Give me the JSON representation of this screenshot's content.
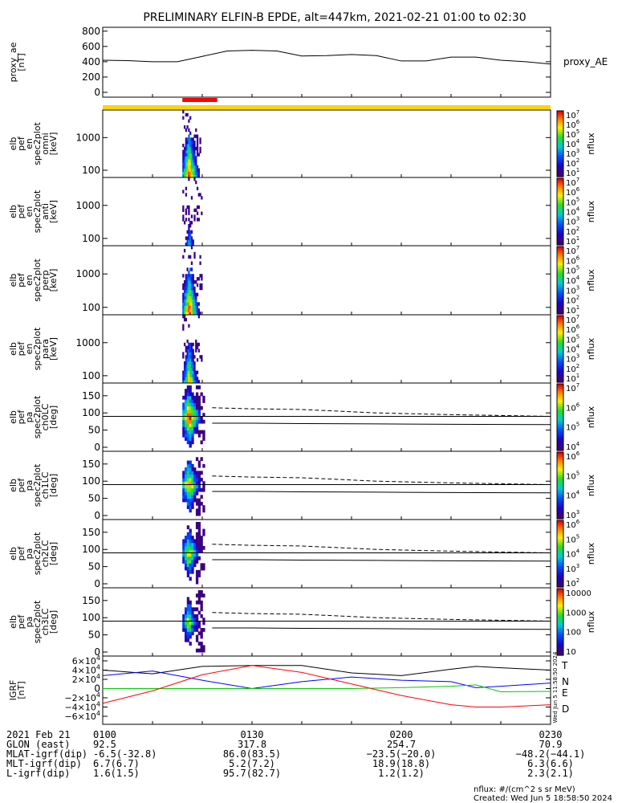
{
  "title": "PRELIMINARY ELFIN-B EPDE, alt=447km, 2021-02-21 01:00 to 02:30",
  "colors": {
    "yellow_bar": "#ffd400",
    "red_bar": "#ff0000",
    "igrf_T": "#000000",
    "igrf_N": "#0000ff",
    "igrf_E": "#00cc00",
    "igrf_D": "#ff0000"
  },
  "panels": [
    {
      "ylabel": [
        "proxy_ae",
        "[nT]"
      ],
      "right_label": "proxy_AE",
      "yticks": [
        "800",
        "600",
        "400",
        "200",
        "0"
      ]
    },
    {
      "ylabel": [
        "elb",
        "pef",
        "en",
        "spec2plot",
        "omni",
        "[keV]"
      ],
      "yticks": [
        "1000",
        "100"
      ],
      "cbar_ticks": [
        "10",
        "10",
        "10",
        "10",
        "10",
        "10",
        "10"
      ],
      "cbar_exps": [
        "7",
        "6",
        "5",
        "4",
        "3",
        "2",
        "1"
      ],
      "cbar_label": "nflux"
    },
    {
      "ylabel": [
        "elb",
        "pef",
        "en",
        "spec2plot",
        "anti",
        "[keV]"
      ],
      "yticks": [
        "1000",
        "100"
      ],
      "cbar_ticks": [
        "10",
        "10",
        "10",
        "10",
        "10",
        "10",
        "10"
      ],
      "cbar_exps": [
        "7",
        "6",
        "5",
        "4",
        "3",
        "2",
        "1"
      ],
      "cbar_label": "nflux"
    },
    {
      "ylabel": [
        "elb",
        "pef",
        "en",
        "spec2plot",
        "perp",
        "[keV]"
      ],
      "yticks": [
        "1000",
        "100"
      ],
      "cbar_ticks": [
        "10",
        "10",
        "10",
        "10",
        "10",
        "10",
        "10"
      ],
      "cbar_exps": [
        "7",
        "6",
        "5",
        "4",
        "3",
        "2",
        "1"
      ],
      "cbar_label": "nflux"
    },
    {
      "ylabel": [
        "elb",
        "pef",
        "en",
        "spec2plot",
        "para",
        "[keV]"
      ],
      "yticks": [
        "1000",
        "100"
      ],
      "cbar_ticks": [
        "10",
        "10",
        "10",
        "10",
        "10",
        "10",
        "10"
      ],
      "cbar_exps": [
        "7",
        "6",
        "5",
        "4",
        "3",
        "2",
        "1"
      ],
      "cbar_label": "nflux"
    },
    {
      "ylabel": [
        "elb",
        "pef",
        "pa",
        "spec2plot",
        "ch0LC",
        "[deg]"
      ],
      "yticks": [
        "150",
        "100",
        "50",
        "0"
      ],
      "cbar_ticks": [
        "10",
        "10",
        "10",
        "10"
      ],
      "cbar_exps": [
        "7",
        "6",
        "5",
        "4"
      ],
      "cbar_label": "nflux"
    },
    {
      "ylabel": [
        "elb",
        "pef",
        "pa",
        "spec2plot",
        "ch1LC",
        "[deg]"
      ],
      "yticks": [
        "150",
        "100",
        "50",
        "0"
      ],
      "cbar_ticks": [
        "10",
        "10",
        "10",
        "10"
      ],
      "cbar_exps": [
        "6",
        "5",
        "4",
        "3"
      ],
      "cbar_label": "nflux"
    },
    {
      "ylabel": [
        "elb",
        "pef",
        "pa",
        "spec2plot",
        "ch2LC",
        "[deg]"
      ],
      "yticks": [
        "150",
        "100",
        "50",
        "0"
      ],
      "cbar_ticks": [
        "10",
        "10",
        "10",
        "10",
        "10"
      ],
      "cbar_exps": [
        "6",
        "5",
        "4",
        "3",
        "2"
      ],
      "cbar_label": "nflux"
    },
    {
      "ylabel": [
        "elb",
        "pef",
        "pa",
        "spec2plot",
        "ch3LC",
        "[deg]"
      ],
      "yticks": [
        "150",
        "100",
        "50",
        "0"
      ],
      "cbar_ticks": [
        "10000",
        "1000",
        "100",
        "10"
      ],
      "cbar_exps": [
        "",
        "",
        "",
        ""
      ],
      "cbar_label": "nflux"
    },
    {
      "ylabel": [
        "IGRF",
        "[nT]"
      ],
      "yticks": [
        "6×10",
        "4×10",
        "2×10",
        "0",
        "−2×10",
        "−4×10",
        "−6×10"
      ],
      "ytick_exps": [
        "4",
        "4",
        "4",
        "",
        "4",
        "4",
        "4"
      ],
      "legend": [
        "T",
        "N",
        "E",
        "D"
      ]
    }
  ],
  "footer": {
    "rows": [
      [
        "2021 Feb 21",
        "0100",
        "0130",
        "0200",
        "0230"
      ],
      [
        "GLON (east)",
        "92.5",
        "317.8",
        "254.7",
        "70.9"
      ],
      [
        "MLAT-igrf(dip)",
        "-6.5(-32.8)",
        "86.0(83.5)",
        "−23.5(−20.0)",
        "−48.2(−44.1)"
      ],
      [
        "MLT-igrf(dip)",
        "6.7(6.7)",
        "5.2(7.2)",
        "18.9(18.8)",
        "6.3(6.6)"
      ],
      [
        "L-igrf(dip)",
        "1.6(1.5)",
        "95.7(82.7)",
        "1.2(1.2)",
        "2.3(2.1)"
      ]
    ],
    "nflux_units": "nflux: #/(cm^2 s sr MeV)",
    "created": "Created: Wed Jun  5 18:58:50 2024",
    "side_stamp": "Wed Jun  5 11:58:50 2024"
  },
  "chart_data": [
    {
      "type": "line",
      "title": "proxy_AE",
      "x": [
        "01:00",
        "01:05",
        "01:10",
        "01:15",
        "01:20",
        "01:25",
        "01:30",
        "01:35",
        "01:40",
        "01:45",
        "01:50",
        "01:55",
        "02:00",
        "02:05",
        "02:10",
        "02:15",
        "02:20",
        "02:25",
        "02:30"
      ],
      "series": [
        {
          "name": "proxy_AE",
          "values": [
            420,
            415,
            400,
            400,
            470,
            540,
            550,
            540,
            475,
            480,
            495,
            480,
            410,
            410,
            460,
            460,
            420,
            400,
            370
          ]
        }
      ],
      "ylim": [
        0,
        850
      ]
    },
    {
      "type": "heatmap",
      "title": "omni",
      "ylabel": "[keV]",
      "ylim": [
        60,
        7000
      ],
      "yscale": "log",
      "zscale": "log",
      "zlim": [
        10,
        10000000
      ],
      "time_range": [
        "01:16",
        "01:20"
      ]
    },
    {
      "type": "heatmap",
      "title": "anti",
      "ylabel": "[keV]",
      "ylim": [
        60,
        7000
      ],
      "yscale": "log",
      "zscale": "log",
      "zlim": [
        10,
        10000000
      ],
      "time_range": [
        "01:16",
        "01:20"
      ]
    },
    {
      "type": "heatmap",
      "title": "perp",
      "ylabel": "[keV]",
      "ylim": [
        60,
        7000
      ],
      "yscale": "log",
      "zscale": "log",
      "zlim": [
        10,
        10000000
      ],
      "time_range": [
        "01:16",
        "01:20"
      ]
    },
    {
      "type": "heatmap",
      "title": "para",
      "ylabel": "[keV]",
      "ylim": [
        60,
        7000
      ],
      "yscale": "log",
      "zscale": "log",
      "zlim": [
        10,
        10000000
      ],
      "time_range": [
        "01:16",
        "01:20"
      ]
    },
    {
      "type": "heatmap",
      "title": "ch0LC",
      "ylabel": "[deg]",
      "ylim": [
        0,
        180
      ],
      "lc_dashed": [
        115,
        112,
        110,
        100,
        95,
        90
      ],
      "lc_solid": [
        70,
        70,
        69,
        68,
        67,
        66
      ]
    },
    {
      "type": "heatmap",
      "title": "ch1LC",
      "ylabel": "[deg]",
      "ylim": [
        0,
        180
      ],
      "lc_dashed": [
        115,
        112,
        110,
        100,
        95,
        90
      ],
      "lc_solid": [
        70,
        70,
        69,
        68,
        67,
        66
      ]
    },
    {
      "type": "heatmap",
      "title": "ch2LC",
      "ylabel": "[deg]",
      "ylim": [
        0,
        180
      ],
      "lc_dashed": [
        115,
        112,
        110,
        100,
        95,
        90
      ],
      "lc_solid": [
        70,
        70,
        69,
        68,
        67,
        66
      ]
    },
    {
      "type": "heatmap",
      "title": "ch3LC",
      "ylabel": "[deg]",
      "ylim": [
        0,
        180
      ],
      "lc_dashed": [
        115,
        112,
        110,
        100,
        95,
        90
      ],
      "lc_solid": [
        70,
        70,
        69,
        68,
        67,
        66
      ]
    },
    {
      "type": "line",
      "title": "IGRF",
      "ylabel": "[nT]",
      "ylim": [
        -60000,
        60000
      ],
      "x": [
        "01:00",
        "01:10",
        "01:20",
        "01:30",
        "01:40",
        "01:50",
        "02:00",
        "02:10",
        "02:15",
        "02:20",
        "02:30"
      ],
      "series": [
        {
          "name": "T",
          "values": [
            40000,
            32000,
            48000,
            50000,
            50000,
            34000,
            28000,
            42000,
            48000,
            45000,
            40000
          ]
        },
        {
          "name": "N",
          "values": [
            28000,
            38000,
            18000,
            0,
            15000,
            25000,
            18000,
            15000,
            2000,
            5000,
            12000
          ]
        },
        {
          "name": "E",
          "values": [
            0,
            0,
            0,
            0,
            0,
            0,
            2000,
            5000,
            8000,
            -7000,
            -6000
          ]
        },
        {
          "name": "D",
          "values": [
            -32000,
            -5000,
            30000,
            50000,
            35000,
            10000,
            -15000,
            -35000,
            -40000,
            -40000,
            -35000
          ]
        }
      ]
    }
  ]
}
